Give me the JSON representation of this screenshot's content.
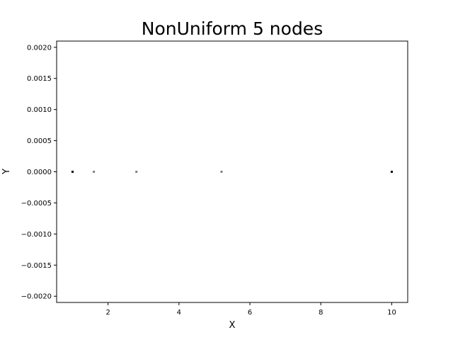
{
  "chart_data": {
    "type": "scatter",
    "title": "NonUniform 5 nodes",
    "xlabel": "X",
    "ylabel": "Y",
    "xlim": [
      0.55,
      10.45
    ],
    "ylim": [
      -0.0021,
      0.0021
    ],
    "xticks": [
      2,
      4,
      6,
      8,
      10
    ],
    "xtick_labels": [
      "2",
      "4",
      "6",
      "8",
      "10"
    ],
    "yticks": [
      0.002,
      0.0015,
      0.001,
      0.0005,
      0.0,
      -0.0005,
      -0.001,
      -0.0015,
      -0.002
    ],
    "ytick_labels": [
      "0.0020",
      "0.0015",
      "0.0010",
      "0.0005",
      "0.0000",
      "−0.0005",
      "−0.0010",
      "−0.0015",
      "−0.0020"
    ],
    "grid": false,
    "points": [
      {
        "x": 1.0,
        "y": 0.0,
        "color": "#000000"
      },
      {
        "x": 1.6,
        "y": 0.0,
        "color": "#808080"
      },
      {
        "x": 2.8,
        "y": 0.0,
        "color": "#808080"
      },
      {
        "x": 5.2,
        "y": 0.0,
        "color": "#808080"
      },
      {
        "x": 10.0,
        "y": 0.0,
        "color": "#000000"
      }
    ]
  }
}
